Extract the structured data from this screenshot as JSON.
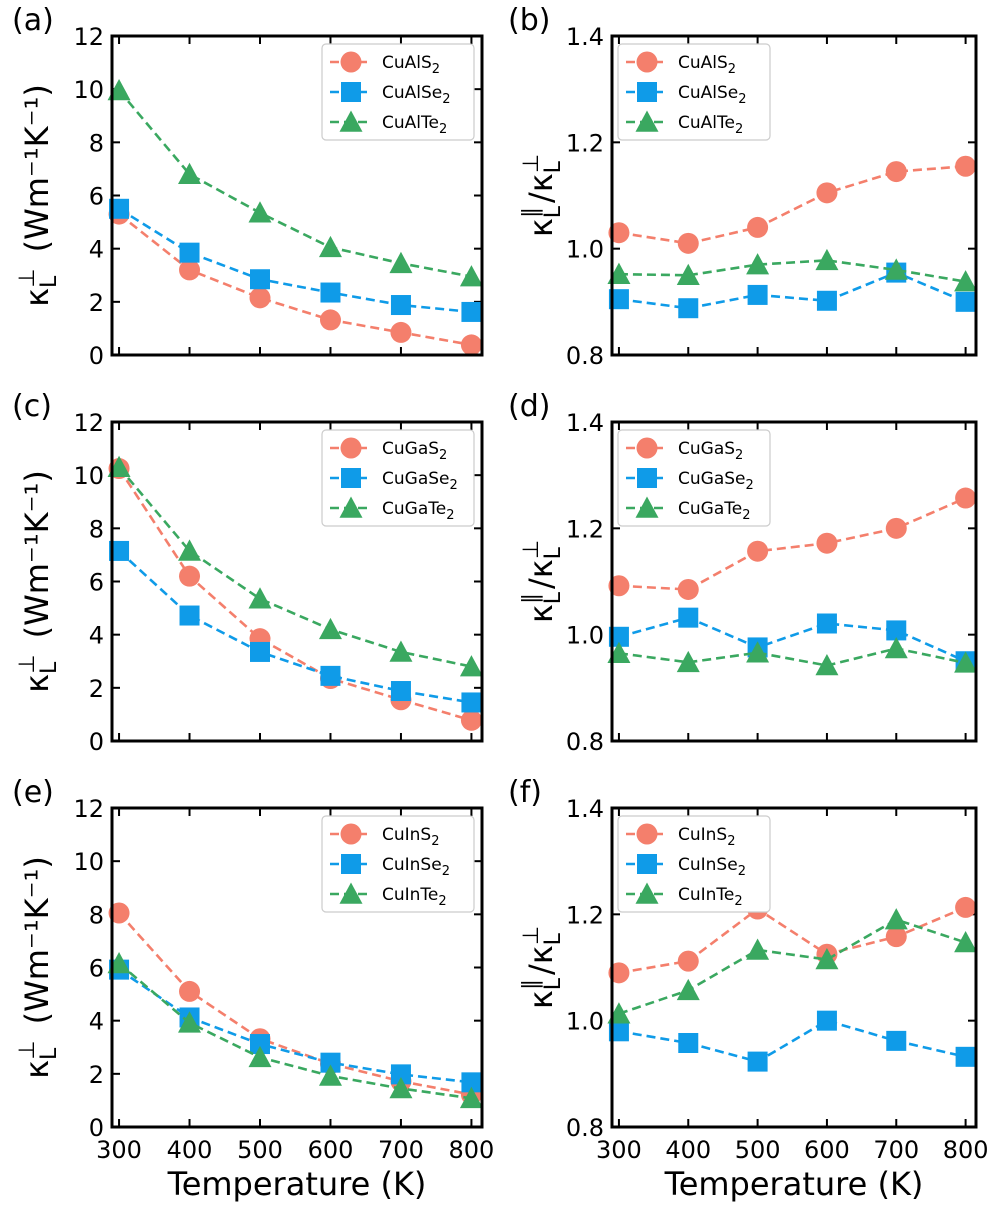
{
  "colors": {
    "S": "#f47f6c",
    "Se": "#0f9be8",
    "Te": "#3aa860"
  },
  "markers": {
    "S": "circle",
    "Se": "square",
    "Te": "triangle"
  },
  "temperature_label": "Temperature (K)",
  "chart_data": [
    {
      "id": "a",
      "panel_label": "(a)",
      "type": "line",
      "ylabel": "κL⊥ (Wm⁻¹K⁻¹)",
      "ylabel_kind": "kappa",
      "x": [
        300,
        400,
        500,
        600,
        700,
        800
      ],
      "ylim": [
        0,
        12
      ],
      "yticks": [
        0,
        2,
        4,
        6,
        8,
        10,
        12
      ],
      "xticks": [
        300,
        400,
        500,
        600,
        700,
        800
      ],
      "show_xticklabels": false,
      "show_xlabel": false,
      "series": [
        {
          "name": "CuAlS₂",
          "key": "S",
          "values": [
            5.3,
            3.2,
            2.15,
            1.32,
            0.85,
            0.38
          ]
        },
        {
          "name": "CuAlSe₂",
          "key": "Se",
          "values": [
            5.5,
            3.85,
            2.85,
            2.35,
            1.88,
            1.62
          ]
        },
        {
          "name": "CuAlTe₂",
          "key": "Te",
          "values": [
            9.95,
            6.8,
            5.35,
            4.05,
            3.45,
            2.95
          ]
        }
      ]
    },
    {
      "id": "b",
      "panel_label": "(b)",
      "type": "line",
      "ylabel": "κL∥/κL⊥",
      "ylabel_kind": "ratio",
      "x": [
        300,
        400,
        500,
        600,
        700,
        800
      ],
      "ylim": [
        0.8,
        1.4
      ],
      "yticks": [
        0.8,
        1.0,
        1.2,
        1.4
      ],
      "xticks": [
        300,
        400,
        500,
        600,
        700,
        800
      ],
      "show_xticklabels": false,
      "show_xlabel": false,
      "series": [
        {
          "name": "CuAlS₂",
          "key": "S",
          "values": [
            1.03,
            1.01,
            1.04,
            1.105,
            1.145,
            1.155
          ]
        },
        {
          "name": "CuAlSe₂",
          "key": "Se",
          "values": [
            0.905,
            0.888,
            0.913,
            0.902,
            0.955,
            0.9
          ]
        },
        {
          "name": "CuAlTe₂",
          "key": "Te",
          "values": [
            0.952,
            0.95,
            0.97,
            0.978,
            0.96,
            0.938
          ]
        }
      ]
    },
    {
      "id": "c",
      "panel_label": "(c)",
      "type": "line",
      "ylabel": "κL⊥ (Wm⁻¹K⁻¹)",
      "ylabel_kind": "kappa",
      "x": [
        300,
        400,
        500,
        600,
        700,
        800
      ],
      "ylim": [
        0,
        12
      ],
      "yticks": [
        0,
        2,
        4,
        6,
        8,
        10,
        12
      ],
      "xticks": [
        300,
        400,
        500,
        600,
        700,
        800
      ],
      "show_xticklabels": false,
      "show_xlabel": false,
      "series": [
        {
          "name": "CuGaS₂",
          "key": "S",
          "values": [
            10.25,
            6.2,
            3.85,
            2.35,
            1.55,
            0.78
          ]
        },
        {
          "name": "CuGaSe₂",
          "key": "Se",
          "values": [
            7.15,
            4.72,
            3.35,
            2.45,
            1.88,
            1.45
          ]
        },
        {
          "name": "CuGaTe₂",
          "key": "Te",
          "values": [
            10.3,
            7.15,
            5.35,
            4.2,
            3.35,
            2.8
          ]
        }
      ]
    },
    {
      "id": "d",
      "panel_label": "(d)",
      "type": "line",
      "ylabel": "κL∥/κL⊥",
      "ylabel_kind": "ratio",
      "x": [
        300,
        400,
        500,
        600,
        700,
        800
      ],
      "ylim": [
        0.8,
        1.4
      ],
      "yticks": [
        0.8,
        1.0,
        1.2,
        1.4
      ],
      "xticks": [
        300,
        400,
        500,
        600,
        700,
        800
      ],
      "show_xticklabels": false,
      "show_xlabel": false,
      "series": [
        {
          "name": "CuGaS₂",
          "key": "S",
          "values": [
            1.092,
            1.085,
            1.157,
            1.172,
            1.2,
            1.257
          ]
        },
        {
          "name": "CuGaSe₂",
          "key": "Se",
          "values": [
            0.996,
            1.032,
            0.976,
            1.021,
            1.008,
            0.95
          ]
        },
        {
          "name": "CuGaTe₂",
          "key": "Te",
          "values": [
            0.965,
            0.948,
            0.966,
            0.942,
            0.974,
            0.947
          ]
        }
      ]
    },
    {
      "id": "e",
      "panel_label": "(e)",
      "type": "line",
      "ylabel": "κL⊥ (Wm⁻¹K⁻¹)",
      "ylabel_kind": "kappa",
      "x": [
        300,
        400,
        500,
        600,
        700,
        800
      ],
      "ylim": [
        0,
        12
      ],
      "yticks": [
        0,
        2,
        4,
        6,
        8,
        10,
        12
      ],
      "xticks": [
        300,
        400,
        500,
        600,
        700,
        800
      ],
      "show_xticklabels": true,
      "show_xlabel": true,
      "series": [
        {
          "name": "CuInS₂",
          "key": "S",
          "values": [
            8.05,
            5.1,
            3.32,
            2.38,
            1.72,
            1.22
          ]
        },
        {
          "name": "CuInSe₂",
          "key": "Se",
          "values": [
            5.92,
            4.12,
            3.12,
            2.42,
            1.98,
            1.68
          ]
        },
        {
          "name": "CuInTe₂",
          "key": "Te",
          "values": [
            6.15,
            3.92,
            2.62,
            1.92,
            1.45,
            1.08
          ]
        }
      ]
    },
    {
      "id": "f",
      "panel_label": "(f)",
      "type": "line",
      "ylabel": "κL∥/κL⊥",
      "ylabel_kind": "ratio",
      "x": [
        300,
        400,
        500,
        600,
        700,
        800
      ],
      "ylim": [
        0.8,
        1.4
      ],
      "yticks": [
        0.8,
        1.0,
        1.2,
        1.4
      ],
      "xticks": [
        300,
        400,
        500,
        600,
        700,
        800
      ],
      "show_xticklabels": true,
      "show_xlabel": true,
      "series": [
        {
          "name": "CuInS₂",
          "key": "S",
          "values": [
            1.09,
            1.112,
            1.21,
            1.125,
            1.158,
            1.213
          ]
        },
        {
          "name": "CuInSe₂",
          "key": "Se",
          "values": [
            0.98,
            0.958,
            0.923,
            1.0,
            0.962,
            0.932
          ]
        },
        {
          "name": "CuInTe₂",
          "key": "Te",
          "values": [
            1.013,
            1.057,
            1.133,
            1.115,
            1.19,
            1.147
          ]
        }
      ]
    }
  ]
}
